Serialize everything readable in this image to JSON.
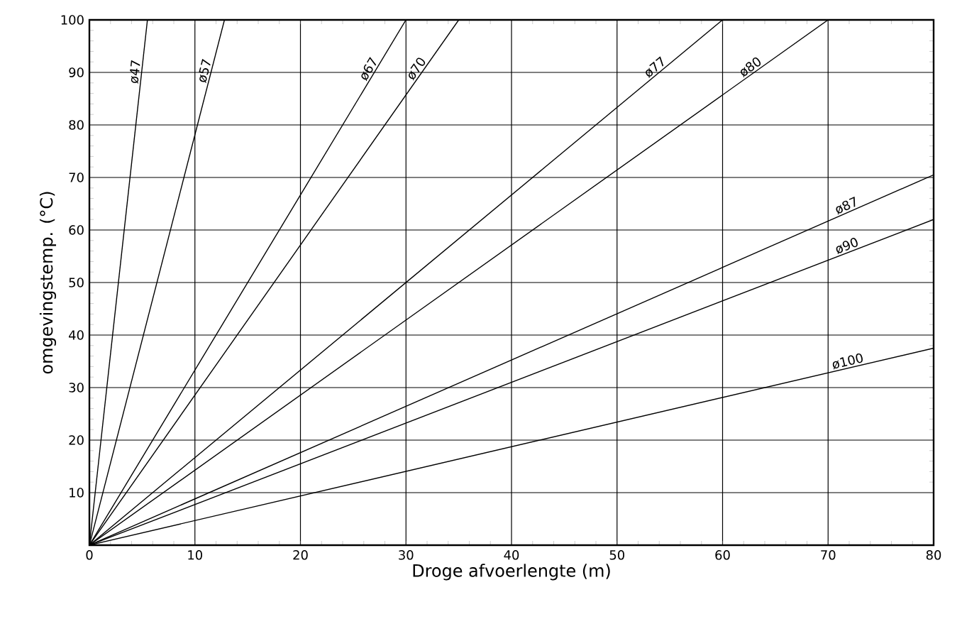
{
  "chart_data": {
    "type": "line",
    "xlabel": "Droge afvoerlengte (m)",
    "ylabel": "omgevingstemp. (°C)",
    "xlim": [
      0,
      80
    ],
    "ylim": [
      0,
      100
    ],
    "xticks": [
      0,
      10,
      20,
      30,
      40,
      50,
      60,
      70,
      80
    ],
    "yticks": [
      10,
      20,
      30,
      40,
      50,
      60,
      70,
      80,
      90,
      100
    ],
    "grid": true,
    "series": [
      {
        "name": "ø47",
        "color": "#000000",
        "x": [
          0,
          5.5
        ],
        "values": [
          0,
          100
        ]
      },
      {
        "name": "ø57",
        "color": "#000000",
        "x": [
          0,
          12.8
        ],
        "values": [
          0,
          100
        ]
      },
      {
        "name": "ø67",
        "color": "#000000",
        "x": [
          0,
          30
        ],
        "values": [
          0,
          100
        ]
      },
      {
        "name": "ø70",
        "color": "#000000",
        "x": [
          0,
          35
        ],
        "values": [
          0,
          100
        ]
      },
      {
        "name": "ø77",
        "color": "#000000",
        "x": [
          0,
          60
        ],
        "values": [
          0,
          100
        ]
      },
      {
        "name": "ø80",
        "color": "#000000",
        "x": [
          0,
          70
        ],
        "values": [
          0,
          100
        ]
      },
      {
        "name": "ø87",
        "color": "#000000",
        "x": [
          0,
          80
        ],
        "values": [
          0,
          70.5
        ]
      },
      {
        "name": "ø90",
        "color": "#000000",
        "x": [
          0,
          80
        ],
        "values": [
          0,
          62
        ]
      },
      {
        "name": "ø100",
        "color": "#000000",
        "x": [
          0,
          80
        ],
        "values": [
          0,
          37.5
        ]
      }
    ]
  }
}
